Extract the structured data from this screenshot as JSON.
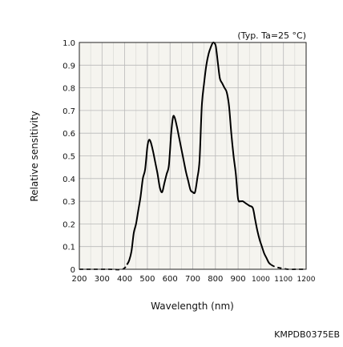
{
  "chart_data": {
    "type": "line",
    "title": "",
    "annotation": "(Typ. Ta=25 °C)",
    "xlabel": "Wavelength (nm)",
    "ylabel": "Relative sensitivity",
    "figure_code": "KMPDB0375EB",
    "xlim": [
      200,
      1200
    ],
    "ylim": [
      0,
      1.0
    ],
    "x_ticks": [
      200,
      300,
      400,
      500,
      600,
      700,
      800,
      900,
      1000,
      1100,
      1200
    ],
    "x_tick_labels": [
      "200",
      "300",
      "400",
      "500",
      "600",
      "700",
      "800",
      "900",
      "1000",
      "1100",
      "1200"
    ],
    "y_ticks": [
      0,
      0.1,
      0.2,
      0.3,
      0.4,
      0.5,
      0.6,
      0.7,
      0.8,
      0.9,
      1.0
    ],
    "y_tick_labels": [
      "0",
      "0.1",
      "0.2",
      "0.3",
      "0.4",
      "0.5",
      "0.6",
      "0.7",
      "0.8",
      "0.9",
      "1.0"
    ],
    "grid": true,
    "plot_background": "#f5f4ef",
    "line_color": "#000000",
    "series": [
      {
        "x": [
          410,
          420,
          430,
          440,
          450,
          460,
          470,
          480,
          490,
          500,
          507,
          515,
          525,
          535,
          545,
          555,
          565,
          575,
          585,
          595,
          605,
          613,
          620,
          630,
          640,
          650,
          660,
          670,
          680,
          690,
          700,
          710,
          720,
          730,
          740,
          750,
          760,
          770,
          780,
          790,
          800,
          805,
          812,
          820,
          830,
          840,
          850,
          860,
          870,
          880,
          890,
          900,
          910,
          920,
          935,
          950,
          965,
          975,
          985,
          995,
          1005,
          1015,
          1025,
          1035,
          1045
        ],
        "y": [
          0.02,
          0.04,
          0.08,
          0.16,
          0.2,
          0.26,
          0.32,
          0.4,
          0.44,
          0.54,
          0.57,
          0.56,
          0.52,
          0.47,
          0.42,
          0.36,
          0.34,
          0.38,
          0.42,
          0.46,
          0.6,
          0.67,
          0.67,
          0.63,
          0.58,
          0.53,
          0.48,
          0.43,
          0.39,
          0.35,
          0.34,
          0.34,
          0.4,
          0.48,
          0.72,
          0.82,
          0.9,
          0.95,
          0.98,
          1.0,
          0.99,
          0.96,
          0.9,
          0.84,
          0.82,
          0.8,
          0.78,
          0.72,
          0.6,
          0.5,
          0.42,
          0.31,
          0.3,
          0.3,
          0.29,
          0.28,
          0.27,
          0.22,
          0.17,
          0.13,
          0.1,
          0.07,
          0.05,
          0.03,
          0.02
        ]
      }
    ],
    "dashed_tails": [
      {
        "x": [
          200,
          260,
          330,
          390,
          410
        ],
        "y": [
          0,
          0,
          0,
          0,
          0.02
        ]
      },
      {
        "x": [
          1045,
          1065,
          1090,
          1120,
          1160,
          1200
        ],
        "y": [
          0.02,
          0.01,
          0.005,
          0,
          0,
          0
        ]
      }
    ]
  }
}
